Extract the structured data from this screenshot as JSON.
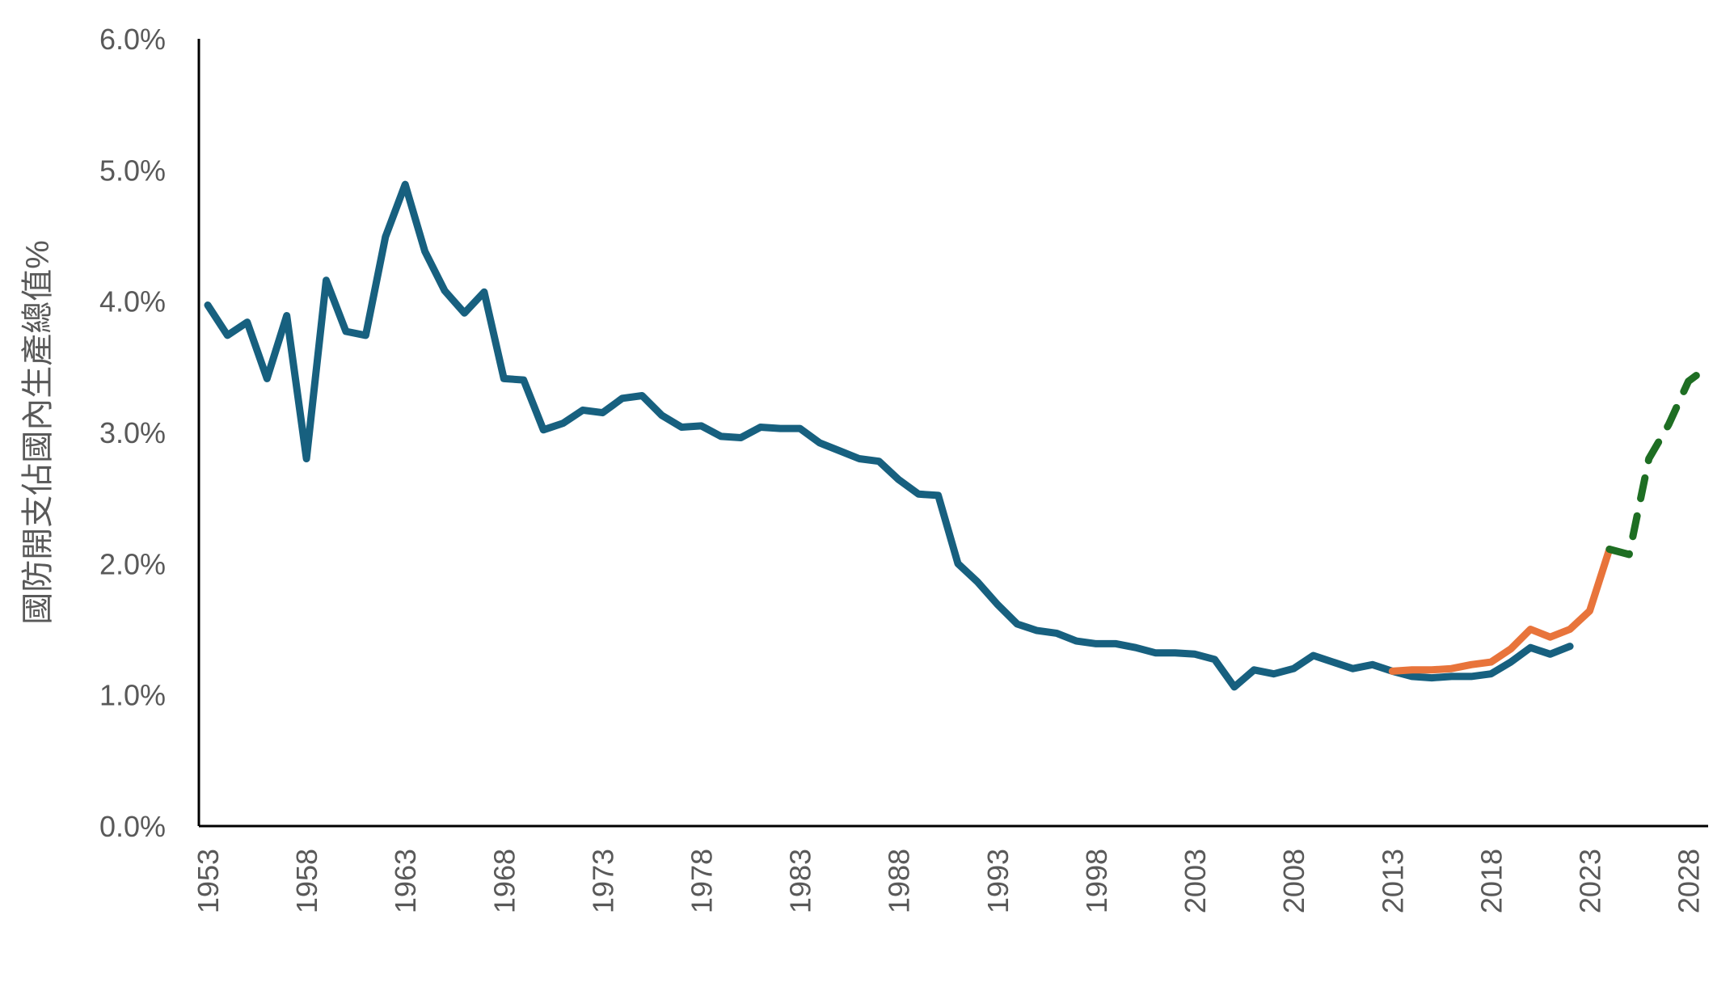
{
  "chart_data": {
    "type": "line",
    "title": "",
    "xlabel": "",
    "ylabel": "國防開支佔國內生產總值%",
    "xlim": [
      1953,
      2029
    ],
    "ylim": [
      0,
      6
    ],
    "y_ticks": [
      "0.0%",
      "1.0%",
      "2.0%",
      "3.0%",
      "4.0%",
      "5.0%",
      "6.0%"
    ],
    "y_tick_values": [
      0,
      1,
      2,
      3,
      4,
      5,
      6
    ],
    "x_ticks": [
      "1953",
      "1958",
      "1963",
      "1968",
      "1973",
      "1978",
      "1983",
      "1988",
      "1993",
      "1998",
      "2003",
      "2008",
      "2013",
      "2018",
      "2023",
      "2028"
    ],
    "grid": false,
    "legend": "none",
    "series": [
      {
        "name": "series-blue",
        "color": "#17607f",
        "style": "solid",
        "x": [
          1953,
          1954,
          1955,
          1956,
          1957,
          1958,
          1959,
          1960,
          1961,
          1962,
          1963,
          1964,
          1965,
          1966,
          1967,
          1968,
          1969,
          1970,
          1971,
          1972,
          1973,
          1974,
          1975,
          1976,
          1977,
          1978,
          1979,
          1980,
          1981,
          1982,
          1983,
          1984,
          1985,
          1986,
          1987,
          1988,
          1989,
          1990,
          1991,
          1992,
          1993,
          1994,
          1995,
          1996,
          1997,
          1998,
          1999,
          2000,
          2001,
          2002,
          2003,
          2004,
          2005,
          2006,
          2007,
          2008,
          2009,
          2010,
          2011,
          2012,
          2013,
          2014,
          2015,
          2016,
          2017,
          2018,
          2019,
          2020,
          2021,
          2022
        ],
        "values": [
          3.97,
          3.74,
          3.84,
          3.41,
          3.89,
          2.8,
          4.16,
          3.77,
          3.74,
          4.49,
          4.89,
          4.38,
          4.08,
          3.91,
          4.07,
          3.41,
          3.4,
          3.02,
          3.07,
          3.17,
          3.15,
          3.26,
          3.28,
          3.13,
          3.04,
          3.05,
          2.97,
          2.96,
          3.04,
          3.03,
          3.03,
          2.92,
          2.86,
          2.8,
          2.78,
          2.64,
          2.53,
          2.52,
          2.0,
          1.86,
          1.69,
          1.54,
          1.49,
          1.47,
          1.41,
          1.39,
          1.39,
          1.36,
          1.32,
          1.32,
          1.31,
          1.27,
          1.06,
          1.19,
          1.16,
          1.2,
          1.3,
          1.25,
          1.2,
          1.23,
          1.18,
          1.14,
          1.13,
          1.14,
          1.14,
          1.16,
          1.25,
          1.36,
          1.31,
          1.37
        ]
      },
      {
        "name": "series-orange",
        "color": "#e8743b",
        "style": "solid",
        "x": [
          2013,
          2014,
          2015,
          2016,
          2017,
          2018,
          2019,
          2020,
          2021,
          2022,
          2023,
          2024
        ],
        "values": [
          1.18,
          1.19,
          1.19,
          1.2,
          1.23,
          1.25,
          1.35,
          1.5,
          1.44,
          1.5,
          1.64,
          2.11
        ]
      },
      {
        "name": "series-green-projection",
        "color": "#1e6e23",
        "style": "dashed",
        "x": [
          2024,
          2025,
          2026,
          2027,
          2028,
          2029
        ],
        "values": [
          2.11,
          2.07,
          2.8,
          3.06,
          3.39,
          3.5
        ]
      }
    ]
  }
}
